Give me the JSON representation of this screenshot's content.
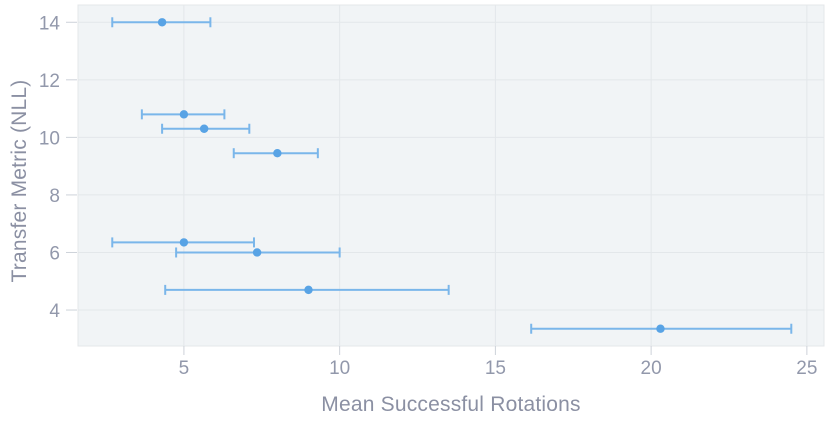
{
  "chart_data": {
    "type": "scatter",
    "title": "",
    "xlabel": "Mean Successful Rotations",
    "ylabel": "Transfer Metric (NLL)",
    "xlim": [
      1.6,
      25.55
    ],
    "ylim": [
      2.75,
      14.6
    ],
    "x_ticks": [
      5,
      10,
      15,
      20,
      25
    ],
    "y_ticks": [
      4,
      6,
      8,
      10,
      12,
      14
    ],
    "grid": true,
    "legend": "none",
    "error_bars": "horizontal",
    "points": [
      {
        "x": 4.3,
        "y": 14.0,
        "x_min": 2.7,
        "x_max": 5.85
      },
      {
        "x": 5.0,
        "y": 10.8,
        "x_min": 3.65,
        "x_max": 6.3
      },
      {
        "x": 5.65,
        "y": 10.3,
        "x_min": 4.3,
        "x_max": 7.1
      },
      {
        "x": 8.0,
        "y": 9.45,
        "x_min": 6.6,
        "x_max": 9.3
      },
      {
        "x": 5.0,
        "y": 6.35,
        "x_min": 2.7,
        "x_max": 7.25
      },
      {
        "x": 7.35,
        "y": 6.0,
        "x_min": 4.75,
        "x_max": 10.0
      },
      {
        "x": 9.0,
        "y": 4.7,
        "x_min": 4.4,
        "x_max": 13.5
      },
      {
        "x": 20.3,
        "y": 3.35,
        "x_min": 16.15,
        "x_max": 24.5
      }
    ],
    "colors": {
      "marker": "#58a3e5",
      "error_bar": "#7ab6ea",
      "plot_background": "#f1f4f6",
      "plot_border": "#e4e7ea",
      "gridline": "#e3e7ea",
      "tick_mark": "#cdd2d9",
      "tick_label": "#9298ab",
      "axis_title": "#8b90a3",
      "page_background": "#ffffff"
    }
  }
}
